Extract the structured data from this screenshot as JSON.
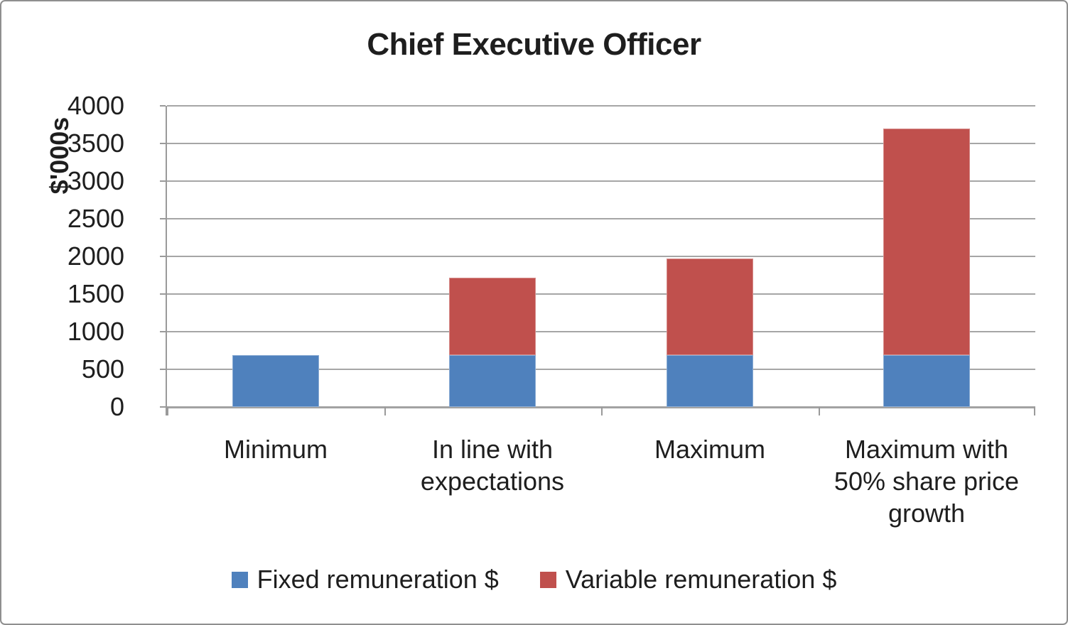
{
  "chart_data": {
    "type": "bar",
    "stacked": true,
    "title": "Chief Executive Officer",
    "xlabel": "",
    "ylabel": "$'000s",
    "categories": [
      "Minimum",
      "In line with expectations",
      "Maximum",
      "Maximum with 50% share price growth"
    ],
    "series": [
      {
        "name": "Fixed remuneration $",
        "color": "#4F81BD",
        "values": [
          690,
          690,
          690,
          690
        ]
      },
      {
        "name": "Variable remuneration $",
        "color": "#C0504D",
        "values": [
          0,
          1025,
          1280,
          3005
        ]
      }
    ],
    "stacked_totals": [
      690,
      1715,
      1970,
      3695
    ],
    "ylim": [
      0,
      4000
    ],
    "yticks": [
      0,
      500,
      1000,
      1500,
      2000,
      2500,
      3000,
      3500,
      4000
    ],
    "grid": true,
    "legend_position": "bottom"
  },
  "colors": {
    "gridline": "#a6a6a6",
    "axis": "#9a9a9a",
    "text": "#1e1e1e",
    "frame_border": "#8f8f8f",
    "background": "#ffffff"
  }
}
